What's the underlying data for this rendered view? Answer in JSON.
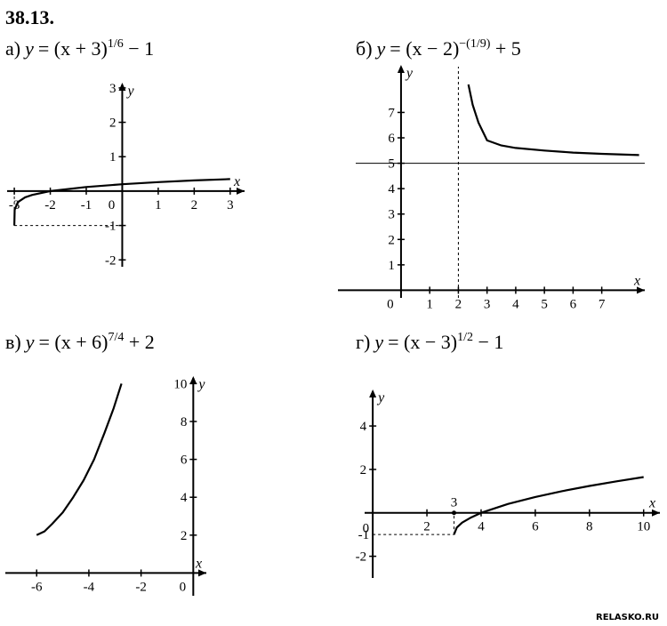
{
  "problem_number": "38.13.",
  "watermark": "RELASKO.RU",
  "chart_data": [
    {
      "id": "a",
      "type": "line",
      "caption": "а) y = (x + 3)^(1/6) − 1",
      "caption_parts": {
        "prefix": "а)",
        "y": "y",
        "body": "= (x + 3)",
        "exp": "1/6",
        "tail": " − 1"
      },
      "xlabel": "x",
      "ylabel": "y",
      "xlim": [
        -3.2,
        3.4
      ],
      "ylim": [
        -2.2,
        3.1
      ],
      "x_ticks": [
        -3,
        -2,
        -1,
        0,
        1,
        2,
        3
      ],
      "x_tick_labels": [
        "-3",
        "-2",
        "-1",
        "0",
        "1",
        "2",
        "3"
      ],
      "y_ticks": [
        3,
        2,
        1,
        -1,
        -2
      ],
      "y_tick_labels": [
        "3",
        "2",
        "1",
        "-1",
        "-2"
      ],
      "series": [
        {
          "x": [
            -3,
            -2.99,
            -2.9,
            -2.7,
            -2.5,
            -2.0,
            -1.0,
            0,
            1,
            2,
            3
          ],
          "y": [
            -1,
            -0.54,
            -0.32,
            -0.18,
            -0.11,
            0,
            0.12,
            0.2,
            0.26,
            0.31,
            0.35
          ]
        }
      ],
      "guides": [
        {
          "from": [
            -3,
            0
          ],
          "to": [
            -3,
            -1
          ]
        },
        {
          "from": [
            -3,
            -1
          ],
          "to": [
            0,
            -1
          ]
        }
      ]
    },
    {
      "id": "b",
      "type": "line",
      "caption": "б) y = (x − 2)^(−(1/9)) + 5",
      "caption_parts": {
        "prefix": "б)",
        "y": "y",
        "body": "= (x − 2)",
        "exp": "−(1/9)",
        "tail": " + 5"
      },
      "xlabel": "x",
      "ylabel": "y",
      "xlim": [
        -2.2,
        8.5
      ],
      "ylim": [
        -0.3,
        8.8
      ],
      "x_ticks": [
        0,
        1,
        2,
        3,
        4,
        5,
        6,
        7
      ],
      "x_tick_labels": [
        "0",
        "1",
        "2",
        "3",
        "4",
        "5",
        "6",
        "7"
      ],
      "y_ticks": [
        1,
        2,
        3,
        4,
        5,
        6,
        7
      ],
      "y_tick_labels": [
        "1",
        "2",
        "3",
        "4",
        "5",
        "6",
        "7"
      ],
      "series": [
        {
          "x": [
            2.35,
            2.5,
            2.7,
            3.0,
            3.5,
            4.0,
            5.0,
            6.0,
            7.0,
            8.3
          ],
          "y": [
            8.1,
            7.3,
            6.6,
            5.9,
            5.7,
            5.6,
            5.5,
            5.42,
            5.37,
            5.32
          ]
        }
      ],
      "asymptotes": [
        {
          "type": "vertical",
          "x": 2
        },
        {
          "type": "horizontal",
          "y": 5
        }
      ]
    },
    {
      "id": "c",
      "type": "line",
      "caption": "в) y = (x + 6)^(7/4) + 2",
      "caption_parts": {
        "prefix": "в)",
        "y": "y",
        "body": "= (x + 6)",
        "exp": "7/4",
        "tail": " + 2"
      },
      "xlabel": "x",
      "ylabel": "y",
      "xlim": [
        -7.2,
        0.5
      ],
      "ylim": [
        -1.2,
        10.3
      ],
      "x_ticks": [
        -6,
        -4,
        -2,
        0
      ],
      "x_tick_labels": [
        "-6",
        "-4",
        "-2",
        "0"
      ],
      "y_ticks": [
        10,
        8,
        6,
        4,
        2
      ],
      "y_tick_labels": [
        "10",
        "8",
        "6",
        "4",
        "2"
      ],
      "series": [
        {
          "x": [
            -6,
            -5.7,
            -5.4,
            -5.0,
            -4.6,
            -4.2,
            -3.8,
            -3.4,
            -3.05,
            -2.75
          ],
          "y": [
            2,
            2.2,
            2.6,
            3.2,
            4.0,
            4.9,
            6.0,
            7.4,
            8.7,
            10.0
          ]
        }
      ]
    },
    {
      "id": "d",
      "type": "line",
      "caption": "г) y = (x − 3)^(1/2) − 1",
      "caption_parts": {
        "prefix": "г)",
        "y": "y",
        "body": "= (x − 3)",
        "exp": "1/2",
        "tail": " − 1"
      },
      "xlabel": "x",
      "ylabel": "y",
      "xlim": [
        -0.3,
        10.6
      ],
      "ylim": [
        -3.0,
        5.6
      ],
      "x_ticks": [
        2,
        4,
        6,
        8,
        10
      ],
      "x_tick_labels": [
        "2",
        "4",
        "6",
        "8",
        "10"
      ],
      "y_ticks": [
        4,
        2,
        -2
      ],
      "y_tick_labels": [
        "4",
        "2",
        "-2"
      ],
      "extra_labels": {
        "origin": "0",
        "minus_one": "-1",
        "three": "3"
      },
      "series": [
        {
          "x": [
            3,
            3.1,
            3.3,
            3.6,
            4,
            5,
            6,
            7,
            8,
            9,
            10
          ],
          "y": [
            -1,
            -0.68,
            -0.45,
            -0.23,
            0,
            0.41,
            0.73,
            1.0,
            1.24,
            1.45,
            1.65
          ]
        }
      ],
      "guides": [
        {
          "from": [
            0,
            -1
          ],
          "to": [
            3,
            -1
          ]
        },
        {
          "from": [
            3,
            -1
          ],
          "to": [
            3,
            0
          ]
        }
      ]
    }
  ]
}
